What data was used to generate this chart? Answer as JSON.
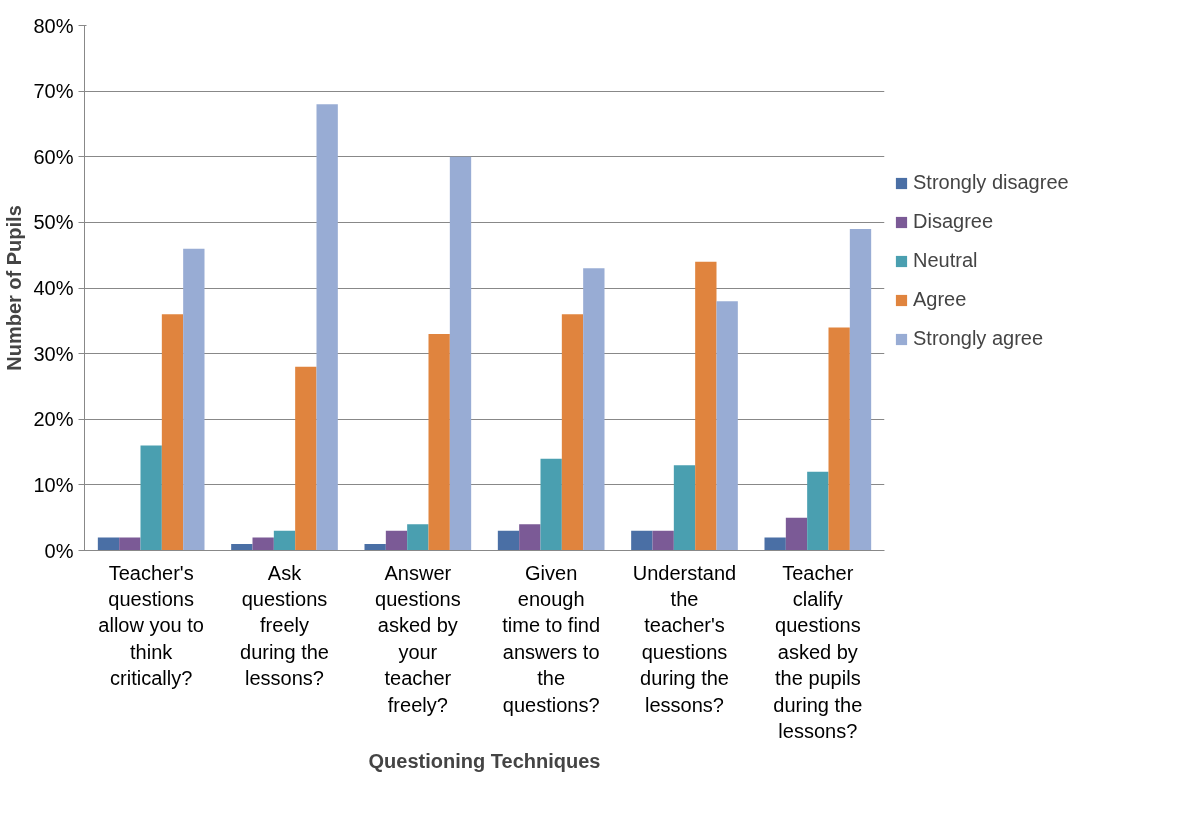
{
  "chart_data": {
    "type": "bar",
    "xlabel": "Questioning Techniques",
    "ylabel": "Number of Pupils",
    "categories": [
      "Teacher's\nquestions\nallow you to\nthink\ncritically?",
      "Ask\nquestions\nfreely\nduring the\nlessons?",
      "Answer\nquestions\nasked by\nyour\nteacher\nfreely?",
      "Given\nenough\ntime to find\nanswers to\nthe\nquestions?",
      "Understand\nthe\nteacher's\nquestions\nduring the\nlessons?",
      "Teacher\nclalify\nquestions\nasked by\nthe pupils\nduring the\nlessons?"
    ],
    "series": [
      {
        "name": "Strongly disagree",
        "color": "#4a6fa5",
        "values": [
          2,
          1,
          1,
          3,
          3,
          2
        ]
      },
      {
        "name": "Disagree",
        "color": "#7b5a96",
        "values": [
          2,
          2,
          3,
          4,
          3,
          5
        ]
      },
      {
        "name": "Neutral",
        "color": "#4a9fb0",
        "values": [
          16,
          3,
          4,
          14,
          13,
          12
        ]
      },
      {
        "name": "Agree",
        "color": "#e0843e",
        "values": [
          36,
          28,
          33,
          36,
          44,
          34
        ]
      },
      {
        "name": "Strongly agree",
        "color": "#98acd4",
        "values": [
          46,
          68,
          60,
          43,
          38,
          49
        ]
      }
    ],
    "ylim": [
      0,
      80
    ],
    "yticks": [
      {
        "value": 0,
        "label": "0%"
      },
      {
        "value": 10,
        "label": "10%"
      },
      {
        "value": 20,
        "label": "20%"
      },
      {
        "value": 30,
        "label": "30%"
      },
      {
        "value": 40,
        "label": "40%"
      },
      {
        "value": 50,
        "label": "50%"
      },
      {
        "value": 60,
        "label": "60%"
      },
      {
        "value": 70,
        "label": "70%"
      },
      {
        "value": 80,
        "label": "80%"
      }
    ],
    "grid": "y",
    "legend": "right"
  }
}
